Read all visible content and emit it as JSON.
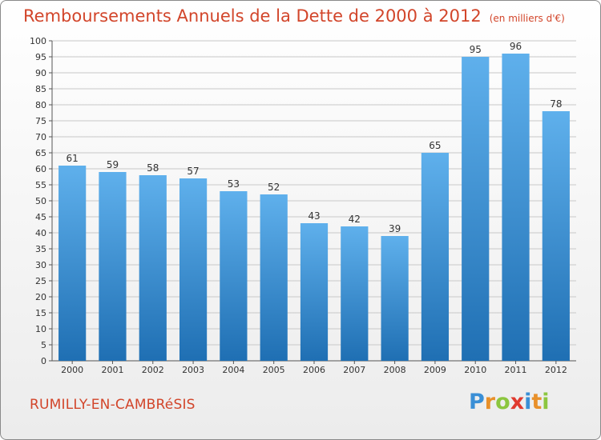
{
  "title": "Remboursements Annuels de la Dette de 2000 à 2012",
  "unit": "(en milliers d'€)",
  "commune": "RUMILLY-EN-CAMBRéSIS",
  "logo": {
    "letters": [
      "P",
      "r",
      "o",
      "x",
      "i",
      "t",
      "i"
    ],
    "colors": [
      "#3a8fd6",
      "#e8902a",
      "#8cc63f",
      "#e03a2f",
      "#3a8fd6",
      "#e8902a",
      "#8cc63f"
    ]
  },
  "colors": {
    "title": "#d2452a",
    "bar_top": "#5fb0ec",
    "bar_bottom": "#1f6fb3",
    "grid": "#c8c8c8"
  },
  "chart_data": {
    "type": "bar",
    "categories": [
      "2000",
      "2001",
      "2002",
      "2003",
      "2004",
      "2005",
      "2006",
      "2007",
      "2008",
      "2009",
      "2010",
      "2011",
      "2012"
    ],
    "values": [
      61,
      59,
      58,
      57,
      53,
      52,
      43,
      42,
      39,
      65,
      95,
      96,
      78
    ],
    "title": "Remboursements Annuels de la Dette de 2000 à 2012",
    "ylim": [
      0,
      100
    ],
    "yticks": [
      0,
      5,
      10,
      15,
      20,
      25,
      30,
      35,
      40,
      45,
      50,
      55,
      60,
      65,
      70,
      75,
      80,
      85,
      90,
      95,
      100
    ],
    "grid": true
  }
}
